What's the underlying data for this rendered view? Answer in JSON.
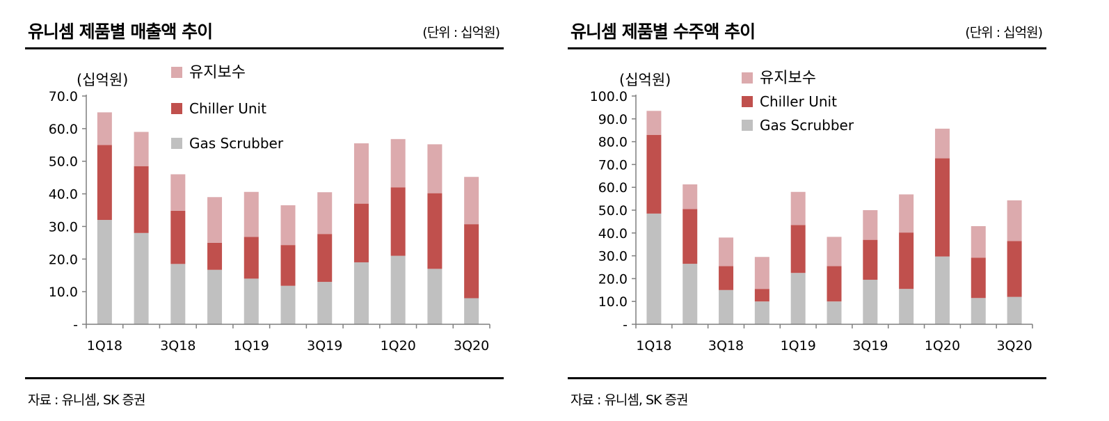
{
  "colors": {
    "maintenance": "#dcaaad",
    "chiller": "#c0504d",
    "scrubber": "#c0c0c0"
  },
  "panels": [
    {
      "title": "유니셈 제품별 매출액 추이",
      "unit": "(단위 : 십억원)",
      "source": "자료 : 유니셈, SK 증권",
      "chart_data": {
        "type": "bar",
        "stacked": true,
        "ylabel": "(십억원)",
        "ylim": [
          0,
          70
        ],
        "yticks": [
          "-",
          "10.0",
          "20.0",
          "30.0",
          "40.0",
          "50.0",
          "60.0",
          "70.0"
        ],
        "categories": [
          "1Q18",
          "2Q18",
          "3Q18",
          "4Q18",
          "1Q19",
          "2Q19",
          "3Q19",
          "4Q19",
          "1Q20",
          "2Q20",
          "3Q20"
        ],
        "xtick_labels": [
          "1Q18",
          "",
          "3Q18",
          "",
          "1Q19",
          "",
          "3Q19",
          "",
          "1Q20",
          "",
          "3Q20"
        ],
        "legend_position": "top-left",
        "series": [
          {
            "name": "Gas Scrubber",
            "color_key": "scrubber",
            "values": [
              32.0,
              28.0,
              18.5,
              16.7,
              14.0,
              11.8,
              13.0,
              19.0,
              21.0,
              17.0,
              8.0
            ]
          },
          {
            "name": "Chiller Unit",
            "color_key": "chiller",
            "values": [
              23.0,
              20.5,
              16.3,
              8.3,
              12.8,
              12.5,
              14.7,
              18.0,
              21.0,
              23.2,
              22.7
            ]
          },
          {
            "name": "유지보수",
            "color_key": "maintenance",
            "values": [
              10.0,
              10.5,
              11.2,
              14.0,
              13.8,
              12.2,
              12.8,
              18.5,
              14.8,
              15.0,
              14.5
            ]
          }
        ]
      }
    },
    {
      "title": "유니셈 제품별 수주액 추이",
      "unit": "(단위 : 십억원)",
      "source": "자료 : 유니셈, SK 증권",
      "chart_data": {
        "type": "bar",
        "stacked": true,
        "ylabel": "(십억원)",
        "ylim": [
          0,
          100
        ],
        "yticks": [
          "-",
          "10.0",
          "20.0",
          "30.0",
          "40.0",
          "50.0",
          "60.0",
          "70.0",
          "80.0",
          "90.0",
          "100.0"
        ],
        "categories": [
          "1Q18",
          "2Q18",
          "3Q18",
          "4Q18",
          "1Q19",
          "2Q19",
          "3Q19",
          "4Q19",
          "1Q20",
          "2Q20",
          "3Q20"
        ],
        "xtick_labels": [
          "1Q18",
          "",
          "3Q18",
          "",
          "1Q19",
          "",
          "3Q19",
          "",
          "1Q20",
          "",
          "3Q20"
        ],
        "legend_position": "top-left",
        "series": [
          {
            "name": "Gas Scrubber",
            "color_key": "scrubber",
            "values": [
              48.5,
              26.5,
              15.0,
              10.0,
              22.5,
              10.0,
              19.5,
              15.5,
              29.7,
              11.5,
              12.0
            ]
          },
          {
            "name": "Chiller Unit",
            "color_key": "chiller",
            "values": [
              34.5,
              24.0,
              10.5,
              5.5,
              21.0,
              15.5,
              17.5,
              24.7,
              43.0,
              17.7,
              24.5
            ]
          },
          {
            "name": "유지보수",
            "color_key": "maintenance",
            "values": [
              10.5,
              10.8,
              12.5,
              14.0,
              14.5,
              12.8,
              13.0,
              16.7,
              13.0,
              13.8,
              17.8
            ]
          }
        ]
      }
    }
  ]
}
